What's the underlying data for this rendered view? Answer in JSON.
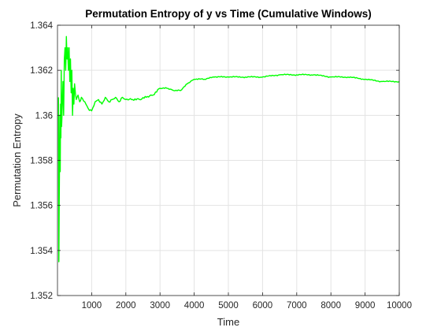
{
  "chart_data": {
    "type": "line",
    "title": "Permutation Entropy of y vs Time (Cumulative Windows)",
    "xlabel": "Time",
    "ylabel": "Permutation Entropy",
    "xlim": [
      0,
      10000
    ],
    "ylim": [
      1.352,
      1.364
    ],
    "x_ticks": [
      1000,
      2000,
      3000,
      4000,
      5000,
      6000,
      7000,
      8000,
      9000,
      10000
    ],
    "x_tick_labels": [
      "1000",
      "2000",
      "3000",
      "4000",
      "5000",
      "6000",
      "7000",
      "8000",
      "9000",
      "10000"
    ],
    "y_ticks": [
      1.352,
      1.354,
      1.356,
      1.358,
      1.36,
      1.362,
      1.364
    ],
    "y_tick_labels": [
      "1.352",
      "1.354",
      "1.356",
      "1.358",
      "1.36",
      "1.362",
      "1.364"
    ],
    "grid": true,
    "series": [
      {
        "color": "#00ff00",
        "x": [
          30,
          40,
          50,
          60,
          70,
          80,
          90,
          100,
          110,
          120,
          140,
          160,
          180,
          200,
          220,
          240,
          260,
          280,
          300,
          320,
          340,
          360,
          380,
          400,
          420,
          440,
          460,
          480,
          500,
          550,
          600,
          650,
          700,
          800,
          900,
          1000,
          1100,
          1200,
          1300,
          1400,
          1500,
          1600,
          1700,
          1800,
          1900,
          2000,
          2200,
          2400,
          2600,
          2800,
          3000,
          3200,
          3400,
          3600,
          3800,
          4000,
          4300,
          4600,
          5000,
          5500,
          6000,
          6500,
          7000,
          7500,
          8000,
          8500,
          9000,
          9500,
          10000
        ],
        "y": [
          1.3608,
          1.3535,
          1.356,
          1.358,
          1.36,
          1.3575,
          1.3605,
          1.359,
          1.362,
          1.3595,
          1.3605,
          1.3615,
          1.36,
          1.3625,
          1.363,
          1.362,
          1.3635,
          1.3625,
          1.363,
          1.362,
          1.363,
          1.3615,
          1.3625,
          1.361,
          1.362,
          1.36,
          1.3612,
          1.3605,
          1.3614,
          1.3607,
          1.3609,
          1.3606,
          1.3608,
          1.3606,
          1.3603,
          1.3602,
          1.3606,
          1.3607,
          1.3605,
          1.3608,
          1.3606,
          1.3607,
          1.3608,
          1.3606,
          1.3608,
          1.3607,
          1.3607,
          1.3607,
          1.3608,
          1.3609,
          1.3612,
          1.3612,
          1.3611,
          1.3611,
          1.3614,
          1.3616,
          1.3616,
          1.3617,
          1.3617,
          1.3617,
          1.3617,
          1.3618,
          1.3618,
          1.3618,
          1.3617,
          1.3617,
          1.3616,
          1.3615,
          1.3615
        ]
      }
    ]
  }
}
